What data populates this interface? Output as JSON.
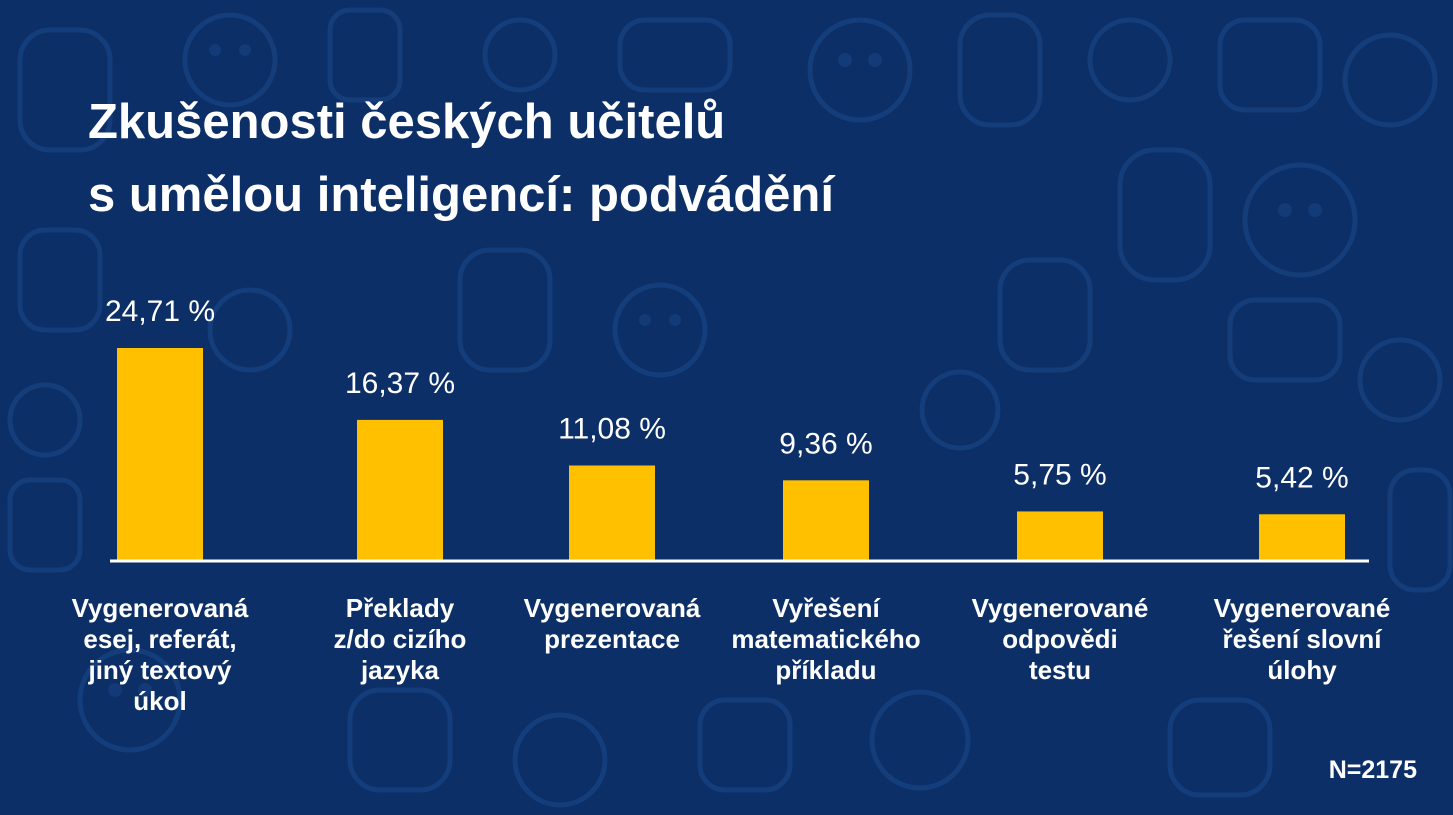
{
  "slide": {
    "title_lines": [
      "Zkušenosti českých učitelů",
      "s umělou inteligencí: podvádění"
    ],
    "sample_note": "N=2175",
    "background_color": "#0b2f66",
    "bar_color": "#ffc000",
    "text_color": "#ffffff"
  },
  "chart_data": {
    "type": "bar",
    "title": "Zkušenosti českých učitelů s umělou inteligencí: podvádění",
    "categories": [
      [
        "Vygenerovaná",
        "esej, referát,",
        "jiný textový",
        "úkol"
      ],
      [
        "Překlady",
        "z/do cizího",
        "jazyka"
      ],
      [
        "Vygenerovaná",
        "prezentace"
      ],
      [
        "Vyřešení",
        "matematického",
        "příkladu"
      ],
      [
        "Vygenerované",
        "odpovědi",
        "testu"
      ],
      [
        "Vygenerované",
        "řešení slovní",
        "úlohy"
      ]
    ],
    "values": [
      24.71,
      16.37,
      11.08,
      9.36,
      5.75,
      5.42
    ],
    "value_labels": [
      "24,71 %",
      "16,37 %",
      "11,08 %",
      "9,36 %",
      "5,75 %",
      "5,42 %"
    ],
    "unit": "%",
    "ylim": [
      0,
      25
    ],
    "grid": false,
    "legend": "none"
  }
}
